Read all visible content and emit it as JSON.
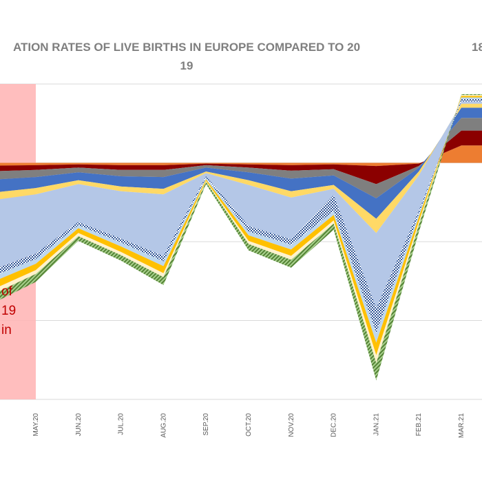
{
  "chart_data": {
    "type": "area",
    "title_line1": "ATION RATES OF LIVE BIRTHS IN EUROPE COMPARED TO 20",
    "title_line2": "19",
    "title_right": "18",
    "categories": [
      "MAY.20",
      "JUN.20",
      "JUL.20",
      "AUG.20",
      "SEP.20",
      "OCT.20",
      "NOV.20",
      "DEC.20",
      "JAN.21",
      "FEB.21",
      "MAR.21"
    ],
    "ylim": [
      -30,
      10
    ],
    "gridlines": [
      10,
      0,
      -10,
      -20,
      -30
    ],
    "grid": true,
    "shaded_region": {
      "color": "#ffb3b3",
      "ends_at": "MAY.20"
    },
    "annotation_lines": [
      "of",
      "19",
      "in"
    ],
    "series": [
      {
        "values": [
          -0.3,
          -0.2,
          -0.3,
          -0.3,
          -0.1,
          -0.2,
          -0.3,
          -0.2,
          -0.4,
          -0.1,
          2.2
        ],
        "color": "#ed7d31",
        "pattern": "solid"
      },
      {
        "values": [
          -0.6,
          -0.4,
          -0.6,
          -0.6,
          -0.2,
          -0.4,
          -0.7,
          -0.6,
          -2.3,
          -0.3,
          1.9
        ],
        "color": "#8b0000",
        "pattern": "solid"
      },
      {
        "values": [
          -0.9,
          -0.6,
          -0.8,
          -0.9,
          -0.3,
          -0.6,
          -1.0,
          -0.8,
          -1.8,
          -0.2,
          1.6
        ],
        "color": "#7f7f7f",
        "pattern": "solid"
      },
      {
        "values": [
          -1.4,
          -1.0,
          -1.3,
          -1.5,
          -0.5,
          -1.0,
          -1.6,
          -1.2,
          -2.6,
          -0.5,
          1.3
        ],
        "color": "#4472c4",
        "pattern": "solid"
      },
      {
        "values": [
          -0.8,
          -0.5,
          -0.6,
          -0.7,
          -0.2,
          -0.6,
          -0.8,
          -0.5,
          -1.8,
          -0.5,
          0.5
        ],
        "color": "#ffd966",
        "pattern": "solid"
      },
      {
        "values": [
          -7.5,
          -4.8,
          -6.0,
          -7.8,
          -0.4,
          -5.2,
          -5.3,
          -0.8,
          -9.5,
          -4.5,
          0.3
        ],
        "color": "#b4c7e7",
        "pattern": "solid"
      },
      {
        "values": [
          -0.7,
          -0.4,
          -0.5,
          -0.7,
          -0.2,
          -0.7,
          -0.7,
          -2.0,
          -3.2,
          -0.4,
          0.3
        ],
        "color": "#2f5597",
        "pattern": "checker"
      },
      {
        "values": [
          -0.6,
          -0.4,
          -0.5,
          -0.6,
          -0.2,
          -0.5,
          -0.6,
          -0.5,
          -1.2,
          -0.4,
          0.2
        ],
        "color": "#bdd7ee",
        "pattern": "solid"
      },
      {
        "values": [
          -0.8,
          -0.6,
          -0.7,
          -0.9,
          -0.2,
          -0.7,
          -0.8,
          -0.7,
          -1.6,
          -0.6,
          0.2
        ],
        "color": "#ffc000",
        "pattern": "solid"
      },
      {
        "values": [
          -0.5,
          -0.4,
          -0.4,
          -0.5,
          -0.1,
          -0.4,
          -0.5,
          -0.4,
          -1.0,
          -0.4,
          0.1
        ],
        "color": "#fff2cc",
        "pattern": "solid"
      },
      {
        "values": [
          -1.0,
          -0.6,
          -0.7,
          -1.0,
          -0.3,
          -0.8,
          -1.0,
          -0.8,
          -2.2,
          -0.9,
          0.1
        ],
        "color": "#70ad47",
        "pattern": "stripe"
      }
    ]
  }
}
